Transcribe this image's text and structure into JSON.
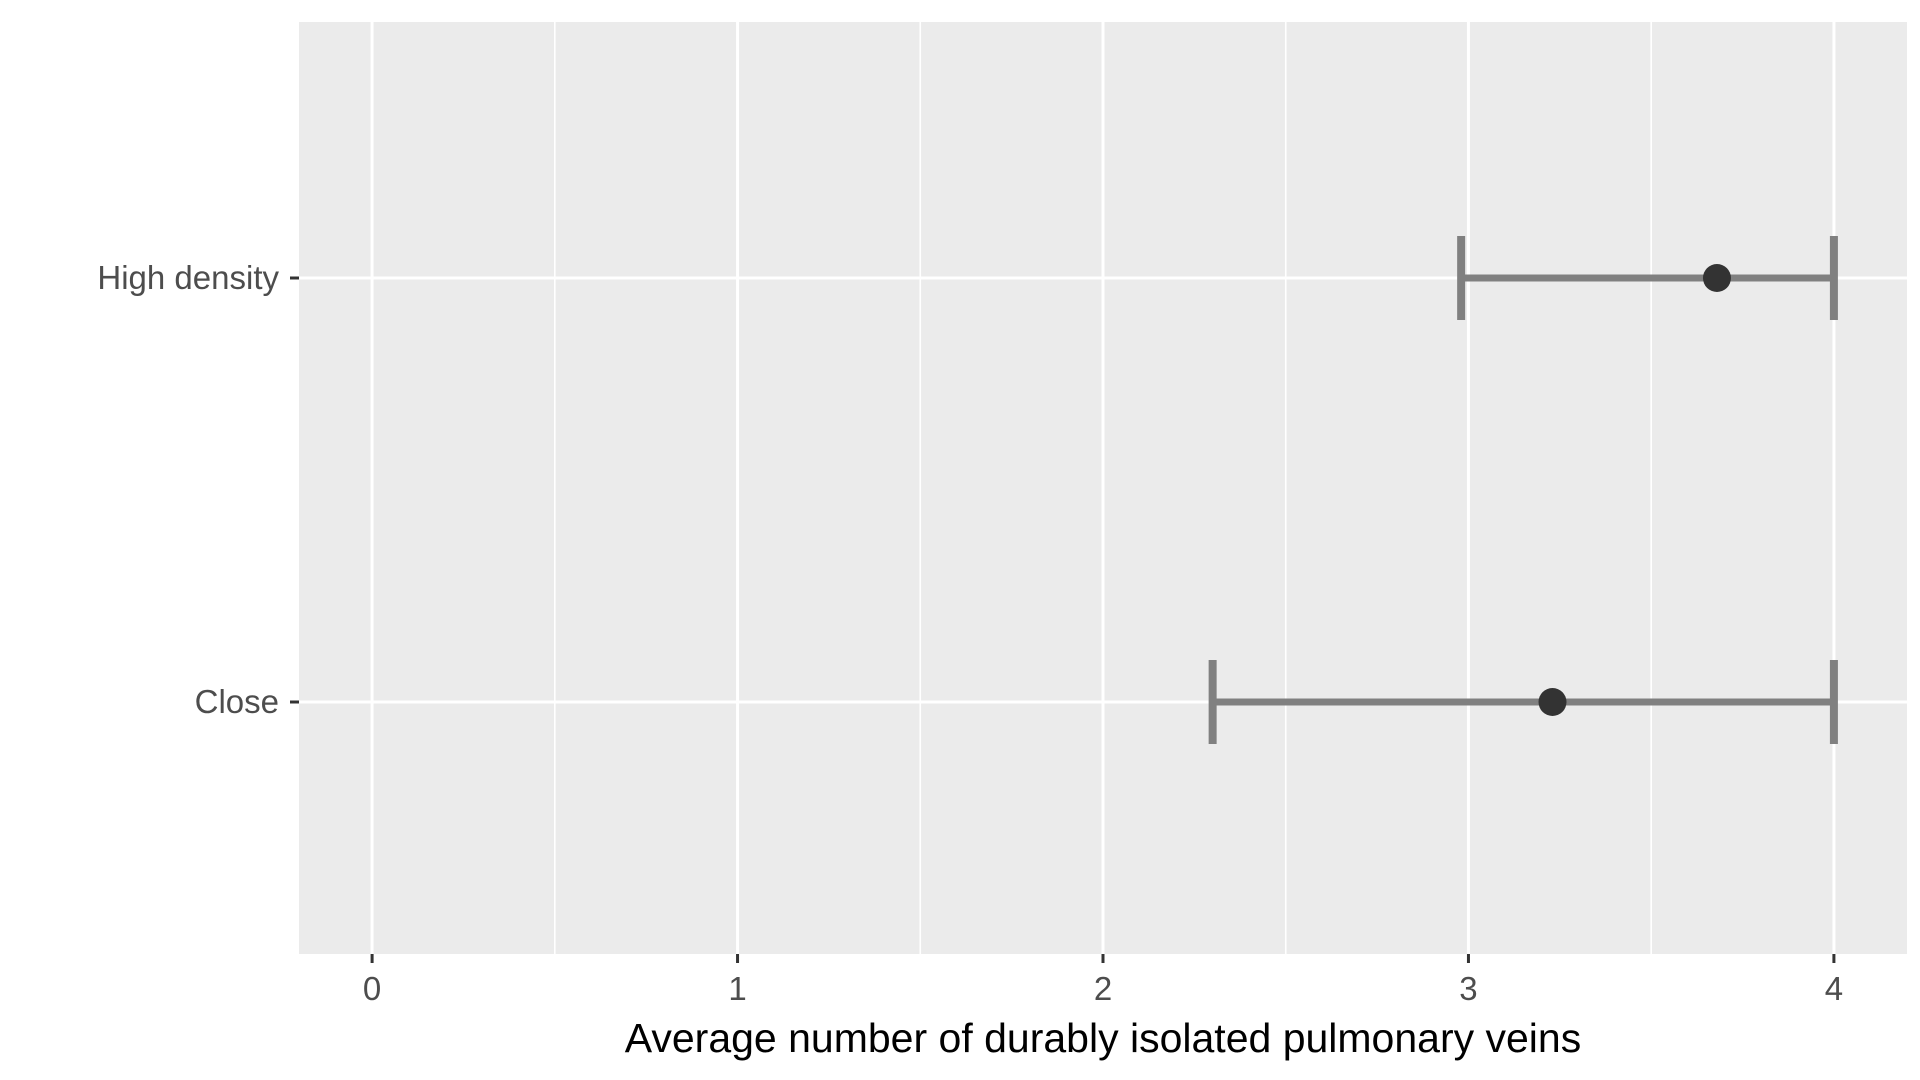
{
  "chart_data": {
    "type": "scatter",
    "title": "",
    "xlabel": "Average number of durably isolated pulmonary veins",
    "ylabel": "",
    "xlim": [
      -0.2,
      4.2
    ],
    "x_ticks": [
      "0",
      "1",
      "2",
      "3",
      "4"
    ],
    "x_tick_values": [
      0,
      1,
      2,
      3,
      4
    ],
    "x_minor_gridlines": [
      0.5,
      1.5,
      2.5,
      3.5
    ],
    "categories": [
      "High density",
      "Close"
    ],
    "points": [
      {
        "category": "High density",
        "value": 3.68,
        "lower": 2.98,
        "upper": 4.0
      },
      {
        "category": "Close",
        "value": 3.23,
        "lower": 2.3,
        "upper": 4.0
      }
    ],
    "grid": true,
    "legend": "none",
    "colors": {
      "panel_background": "#ebebeb",
      "gridline": "#ffffff",
      "point": "#333333",
      "errorbar": "#808080",
      "tick_mark": "#333333"
    }
  }
}
